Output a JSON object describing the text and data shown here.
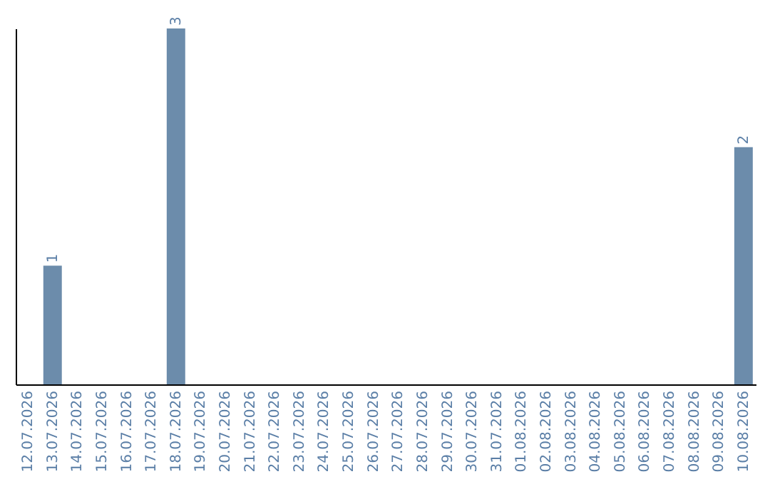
{
  "chart_data": {
    "type": "bar",
    "categories": [
      "12.07.2026",
      "13.07.2026",
      "14.07.2026",
      "15.07.2026",
      "16.07.2026",
      "17.07.2026",
      "18.07.2026",
      "19.07.2026",
      "20.07.2026",
      "21.07.2026",
      "22.07.2026",
      "23.07.2026",
      "24.07.2026",
      "25.07.2026",
      "26.07.2026",
      "27.07.2026",
      "28.07.2026",
      "29.07.2026",
      "30.07.2026",
      "31.07.2026",
      "01.08.2026",
      "02.08.2026",
      "03.08.2026",
      "04.08.2026",
      "05.08.2026",
      "06.08.2026",
      "07.08.2026",
      "08.08.2026",
      "09.08.2026",
      "10.08.2026"
    ],
    "values": [
      null,
      1,
      null,
      null,
      null,
      null,
      3,
      null,
      null,
      null,
      null,
      null,
      null,
      null,
      null,
      null,
      null,
      null,
      null,
      null,
      null,
      null,
      null,
      null,
      null,
      null,
      null,
      null,
      null,
      2
    ],
    "color": "#6c8cab",
    "data_labels": true
  }
}
